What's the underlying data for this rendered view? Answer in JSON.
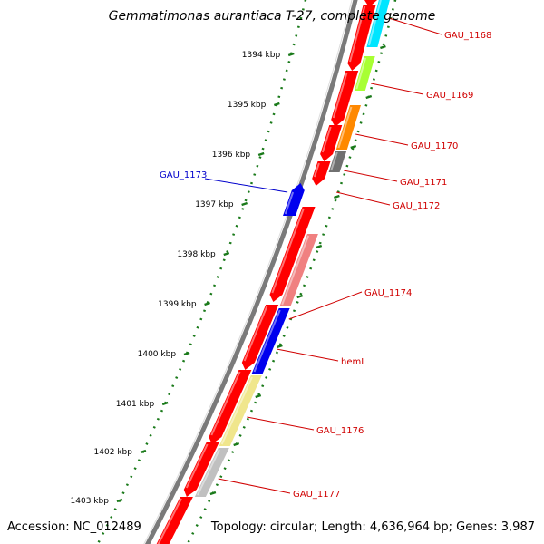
{
  "title": "Gemmatimonas aurantiaca T-27, complete genome",
  "accession_text": "Accession: NC_012489",
  "summary_text": "Topology: circular; Length: 4,636,964 bp; Genes: 3,987",
  "ruler": {
    "tick_labels": [
      "1394 kbp",
      "1395 kbp",
      "1396 kbp",
      "1397 kbp",
      "1398 kbp",
      "1399 kbp",
      "1400 kbp",
      "1401 kbp",
      "1402 kbp",
      "1403 kbp"
    ],
    "tick_color": "#1a7a1a"
  },
  "backbone_color": "#7a7a7a",
  "label_colors": {
    "red": "#d00000",
    "blue": "#0000cc"
  },
  "genes_outer": [
    {
      "name": "GAU_1168",
      "strand": "forward",
      "color": "#ff0000"
    },
    {
      "name": "GAU_1169",
      "strand": "forward",
      "color": "#ff0000"
    },
    {
      "name": "GAU_1170",
      "strand": "forward",
      "color": "#ff0000"
    },
    {
      "name": "GAU_1171",
      "strand": "forward",
      "color": "#ff0000"
    },
    {
      "name": "GAU_1172",
      "strand": "forward",
      "color": "#ff0000"
    },
    {
      "name": "GAU_1173",
      "strand": "reverse",
      "color": "#0000ee"
    },
    {
      "name": "GAU_1174",
      "strand": "forward",
      "color": "#ff0000"
    },
    {
      "name": "hemL",
      "strand": "forward",
      "color": "#ff0000"
    },
    {
      "name": "GAU_1176",
      "strand": "forward",
      "color": "#ff0000"
    },
    {
      "name": "GAU_1177",
      "strand": "forward",
      "color": "#ff0000"
    }
  ],
  "gene_labels": [
    "GAU_1168",
    "GAU_1169",
    "GAU_1170",
    "GAU_1171",
    "GAU_1172",
    "GAU_1173",
    "GAU_1174",
    "hemL",
    "GAU_1176",
    "GAU_1177"
  ],
  "category_colors": [
    "#00e5ff",
    "#a8ff33",
    "#ff8800",
    "#707070",
    "#f08080",
    "#0000ee",
    "#f0e68c",
    "#c0c0c0"
  ]
}
